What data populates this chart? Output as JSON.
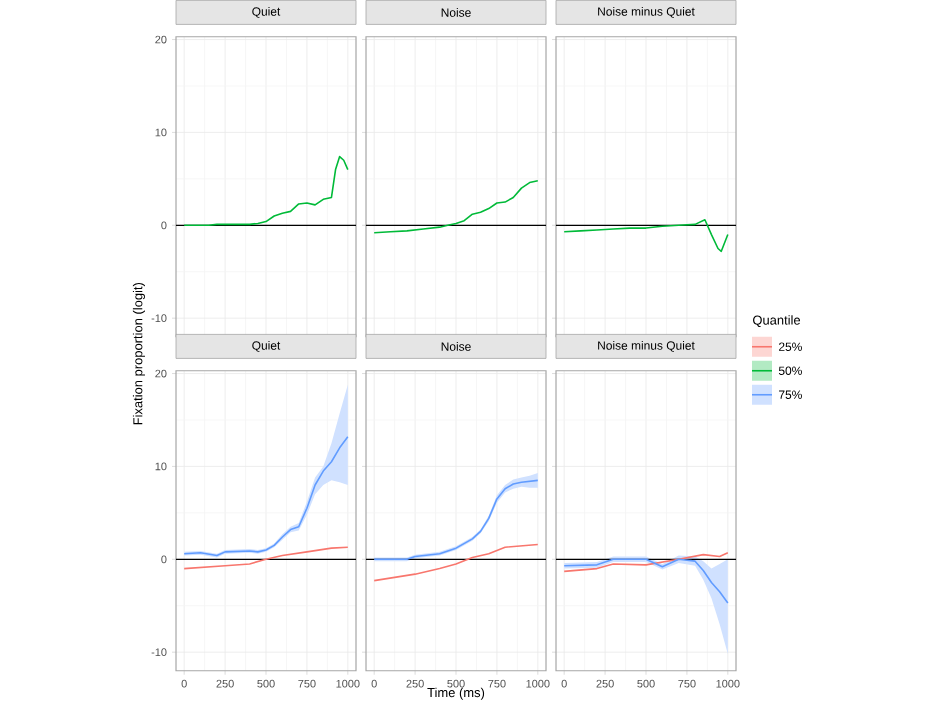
{
  "chart_data": [
    {
      "type": "line",
      "title": "Quiet",
      "xlim": [
        -50,
        1050
      ],
      "ylim": [
        -12,
        20.3
      ],
      "xticks": [
        0,
        250,
        500,
        750,
        1000
      ],
      "yticks": [
        -10,
        0,
        10,
        20
      ],
      "grid": true,
      "tick_labels": "y",
      "ref_lines": [
        {
          "axis": "y",
          "value": 0,
          "color": "#000000"
        }
      ],
      "series": [
        {
          "name": "50%",
          "color": "#00ba38",
          "x": [
            0,
            50,
            100,
            150,
            200,
            250,
            300,
            350,
            400,
            450,
            500,
            550,
            600,
            650,
            700,
            750,
            800,
            850,
            900,
            925,
            950,
            975,
            1000
          ],
          "values": [
            0,
            0,
            0,
            0,
            0.1,
            0.1,
            0.1,
            0.1,
            0.1,
            0.2,
            0.4,
            1.0,
            1.3,
            1.5,
            2.3,
            2.4,
            2.2,
            2.8,
            3.0,
            6.0,
            7.4,
            7.0,
            6.0
          ]
        }
      ]
    },
    {
      "type": "line",
      "title": "Noise",
      "xlim": [
        -50,
        1050
      ],
      "ylim": [
        -12,
        20.3
      ],
      "xticks": [
        0,
        250,
        500,
        750,
        1000
      ],
      "yticks": [
        -10,
        0,
        10,
        20
      ],
      "grid": true,
      "tick_labels": false,
      "ref_lines": [
        {
          "axis": "y",
          "value": 0,
          "color": "#000000"
        }
      ],
      "series": [
        {
          "color": "#00ba38",
          "x": [
            0,
            100,
            200,
            250,
            300,
            400,
            450,
            500,
            550,
            600,
            650,
            700,
            750,
            800,
            850,
            900,
            950,
            1000
          ],
          "values": [
            -0.8,
            -0.7,
            -0.6,
            -0.5,
            -0.4,
            -0.2,
            0,
            0.2,
            0.5,
            1.2,
            1.4,
            1.8,
            2.4,
            2.5,
            3.0,
            4.0,
            4.6,
            4.8
          ]
        }
      ]
    },
    {
      "type": "line",
      "title": "Noise minus Quiet",
      "xlim": [
        -50,
        1050
      ],
      "ylim": [
        -12,
        20.3
      ],
      "xticks": [
        0,
        250,
        500,
        750,
        1000
      ],
      "yticks": [
        -10,
        0,
        10,
        20
      ],
      "grid": true,
      "tick_labels": false,
      "ref_lines": [
        {
          "axis": "y",
          "value": 0,
          "color": "#000000"
        }
      ],
      "series": [
        {
          "color": "#00ba38",
          "x": [
            0,
            100,
            200,
            300,
            400,
            500,
            600,
            700,
            800,
            860,
            900,
            940,
            960,
            1000
          ],
          "values": [
            -0.7,
            -0.6,
            -0.5,
            -0.4,
            -0.3,
            -0.3,
            -0.1,
            0,
            0.1,
            0.6,
            -1.0,
            -2.5,
            -2.8,
            -1.0
          ]
        }
      ]
    },
    {
      "type": "line",
      "title": "Quiet",
      "ylabel": "Fixation proportion (logit)",
      "legend": "right",
      "legend_title": "Quantile",
      "xlim": [
        -50,
        1050
      ],
      "ylim": [
        -12,
        20.3
      ],
      "xticks": [
        0,
        250,
        500,
        750,
        1000
      ],
      "yticks": [
        -10,
        0,
        10,
        20
      ],
      "grid": true,
      "ref_lines": [
        {
          "axis": "y",
          "value": 0,
          "color": "#000000"
        }
      ],
      "series": [
        {
          "name": "25%",
          "color": "#f8766d",
          "x": [
            0,
            250,
            400,
            500,
            600,
            750,
            900,
            1000
          ],
          "values": [
            -1.0,
            -0.7,
            -0.5,
            0,
            0.4,
            0.8,
            1.2,
            1.3
          ]
        },
        {
          "name": "75%",
          "color": "#619cff",
          "x": [
            0,
            100,
            200,
            250,
            400,
            450,
            500,
            550,
            600,
            650,
            700,
            750,
            800,
            850,
            900,
            950,
            1000
          ],
          "values": [
            0.6,
            0.7,
            0.4,
            0.8,
            0.9,
            0.8,
            1.0,
            1.5,
            2.4,
            3.2,
            3.5,
            5.5,
            8.0,
            9.5,
            10.5,
            12.0,
            13.2
          ],
          "lower": [
            0.4,
            0.5,
            0.2,
            0.6,
            0.7,
            0.6,
            0.8,
            1.3,
            2.1,
            2.9,
            3.1,
            4.8,
            7.0,
            8.0,
            8.5,
            8.3,
            8.0
          ],
          "upper": [
            0.8,
            0.9,
            0.6,
            1.0,
            1.1,
            1.0,
            1.2,
            1.7,
            2.7,
            3.5,
            3.9,
            6.2,
            8.8,
            10.0,
            12.5,
            15.7,
            18.8
          ]
        }
      ]
    },
    {
      "type": "line",
      "title": "Noise",
      "xlabel": "Time (ms)",
      "xlim": [
        -50,
        1050
      ],
      "ylim": [
        -12,
        20.3
      ],
      "xticks": [
        0,
        250,
        500,
        750,
        1000
      ],
      "yticks": [
        -10,
        0,
        10,
        20
      ],
      "grid": true,
      "tick_labels": "x",
      "ref_lines": [
        {
          "axis": "y",
          "value": 0,
          "color": "#000000"
        }
      ],
      "series": [
        {
          "color": "#f8766d",
          "x": [
            0,
            250,
            400,
            500,
            600,
            700,
            800,
            1000
          ],
          "values": [
            -2.3,
            -1.6,
            -1.0,
            -0.5,
            0.2,
            0.6,
            1.3,
            1.6
          ]
        },
        {
          "color": "#619cff",
          "x": [
            0,
            200,
            250,
            400,
            500,
            600,
            650,
            700,
            750,
            800,
            850,
            900,
            950,
            1000
          ],
          "values": [
            0,
            0,
            0.3,
            0.6,
            1.2,
            2.2,
            3.0,
            4.4,
            6.5,
            7.6,
            8.1,
            8.3,
            8.4,
            8.5
          ],
          "lower": [
            -0.2,
            -0.2,
            0.1,
            0.4,
            1.0,
            2.0,
            2.8,
            4.1,
            6.1,
            7.2,
            7.6,
            7.8,
            7.7,
            7.7
          ],
          "upper": [
            0.2,
            0.2,
            0.5,
            0.8,
            1.4,
            2.4,
            3.2,
            4.7,
            6.9,
            8.0,
            8.6,
            8.8,
            9.0,
            9.3
          ]
        }
      ]
    },
    {
      "type": "line",
      "title": "Noise minus Quiet",
      "xlim": [
        -50,
        1050
      ],
      "ylim": [
        -12,
        20.3
      ],
      "xticks": [
        0,
        250,
        500,
        750,
        1000
      ],
      "yticks": [
        -10,
        0,
        10,
        20
      ],
      "grid": true,
      "tick_labels": "x",
      "ref_lines": [
        {
          "axis": "y",
          "value": 0,
          "color": "#000000"
        }
      ],
      "series": [
        {
          "color": "#f8766d",
          "x": [
            0,
            200,
            300,
            500,
            700,
            850,
            950,
            1000
          ],
          "values": [
            -1.3,
            -1.0,
            -0.5,
            -0.6,
            0,
            0.5,
            0.3,
            0.7
          ]
        },
        {
          "color": "#619cff",
          "x": [
            0,
            200,
            300,
            500,
            600,
            700,
            800,
            850,
            900,
            950,
            1000
          ],
          "values": [
            -0.7,
            -0.6,
            0,
            0,
            -0.8,
            0,
            -0.2,
            -1.2,
            -2.5,
            -3.5,
            -4.7
          ],
          "lower": [
            -1.0,
            -0.9,
            -0.3,
            -0.3,
            -1.1,
            -0.4,
            -0.7,
            -2.2,
            -4.2,
            -7.0,
            -10.2
          ],
          "upper": [
            -0.4,
            -0.3,
            0.3,
            0.3,
            -0.5,
            0.4,
            0.3,
            -0.2,
            -1.0,
            -0.5,
            0
          ]
        }
      ]
    }
  ]
}
